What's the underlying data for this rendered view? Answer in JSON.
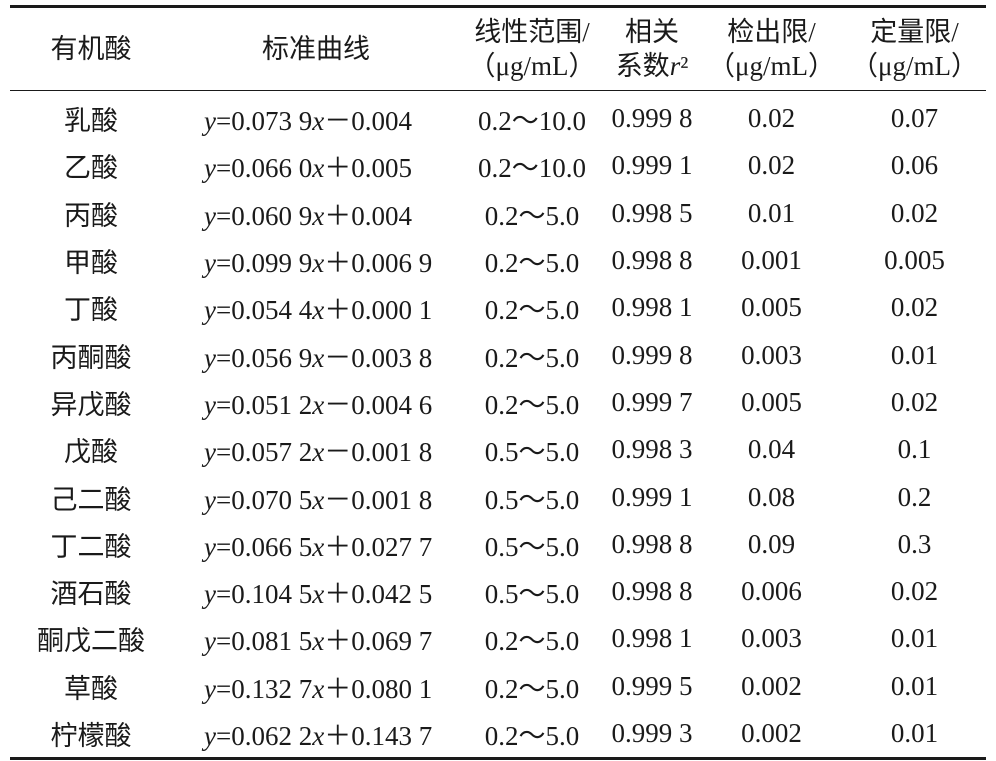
{
  "table": {
    "headers": [
      {
        "lines": [
          "有机酸"
        ]
      },
      {
        "lines": [
          "标准曲线"
        ]
      },
      {
        "lines": [
          "线性范围/",
          "（μg/mL）"
        ]
      },
      {
        "lines": [
          "相关",
          "系数r²"
        ]
      },
      {
        "lines": [
          "检出限/",
          "（μg/mL）"
        ]
      },
      {
        "lines": [
          "定量限/",
          "（μg/mL）"
        ]
      }
    ],
    "rows": [
      {
        "acid": "乳酸",
        "curve": "y=0.073 9x－0.004",
        "range": "0.2～10.0",
        "r2": "0.999 8",
        "lod": "0.02",
        "loq": "0.07"
      },
      {
        "acid": "乙酸",
        "curve": "y=0.066 0x＋0.005",
        "range": "0.2～10.0",
        "r2": "0.999 1",
        "lod": "0.02",
        "loq": "0.06"
      },
      {
        "acid": "丙酸",
        "curve": "y=0.060 9x＋0.004",
        "range": "0.2～5.0",
        "r2": "0.998 5",
        "lod": "0.01",
        "loq": "0.02"
      },
      {
        "acid": "甲酸",
        "curve": "y=0.099 9x＋0.006 9",
        "range": "0.2～5.0",
        "r2": "0.998 8",
        "lod": "0.001",
        "loq": "0.005"
      },
      {
        "acid": "丁酸",
        "curve": "y=0.054 4x＋0.000 1",
        "range": "0.2～5.0",
        "r2": "0.998 1",
        "lod": "0.005",
        "loq": "0.02"
      },
      {
        "acid": "丙酮酸",
        "curve": "y=0.056 9x－0.003 8",
        "range": "0.2～5.0",
        "r2": "0.999 8",
        "lod": "0.003",
        "loq": "0.01"
      },
      {
        "acid": "异戊酸",
        "curve": "y=0.051 2x－0.004 6",
        "range": "0.2～5.0",
        "r2": "0.999 7",
        "lod": "0.005",
        "loq": "0.02"
      },
      {
        "acid": "戊酸",
        "curve": "y=0.057 2x－0.001 8",
        "range": "0.5～5.0",
        "r2": "0.998 3",
        "lod": "0.04",
        "loq": "0.1"
      },
      {
        "acid": "己二酸",
        "curve": "y=0.070 5x－0.001 8",
        "range": "0.5～5.0",
        "r2": "0.999 1",
        "lod": "0.08",
        "loq": "0.2"
      },
      {
        "acid": "丁二酸",
        "curve": "y=0.066 5x＋0.027 7",
        "range": "0.5～5.0",
        "r2": "0.998 8",
        "lod": "0.09",
        "loq": "0.3"
      },
      {
        "acid": "酒石酸",
        "curve": "y=0.104 5x＋0.042 5",
        "range": "0.5～5.0",
        "r2": "0.998 8",
        "lod": "0.006",
        "loq": "0.02"
      },
      {
        "acid": "酮戊二酸",
        "curve": "y=0.081 5x＋0.069 7",
        "range": "0.2～5.0",
        "r2": "0.998 1",
        "lod": "0.003",
        "loq": "0.01"
      },
      {
        "acid": "草酸",
        "curve": "y=0.132 7x＋0.080 1",
        "range": "0.2～5.0",
        "r2": "0.999 5",
        "lod": "0.002",
        "loq": "0.01"
      },
      {
        "acid": "柠檬酸",
        "curve": "y=0.062 2x＋0.143 7",
        "range": "0.2～5.0",
        "r2": "0.999 3",
        "lod": "0.002",
        "loq": "0.01"
      }
    ]
  }
}
